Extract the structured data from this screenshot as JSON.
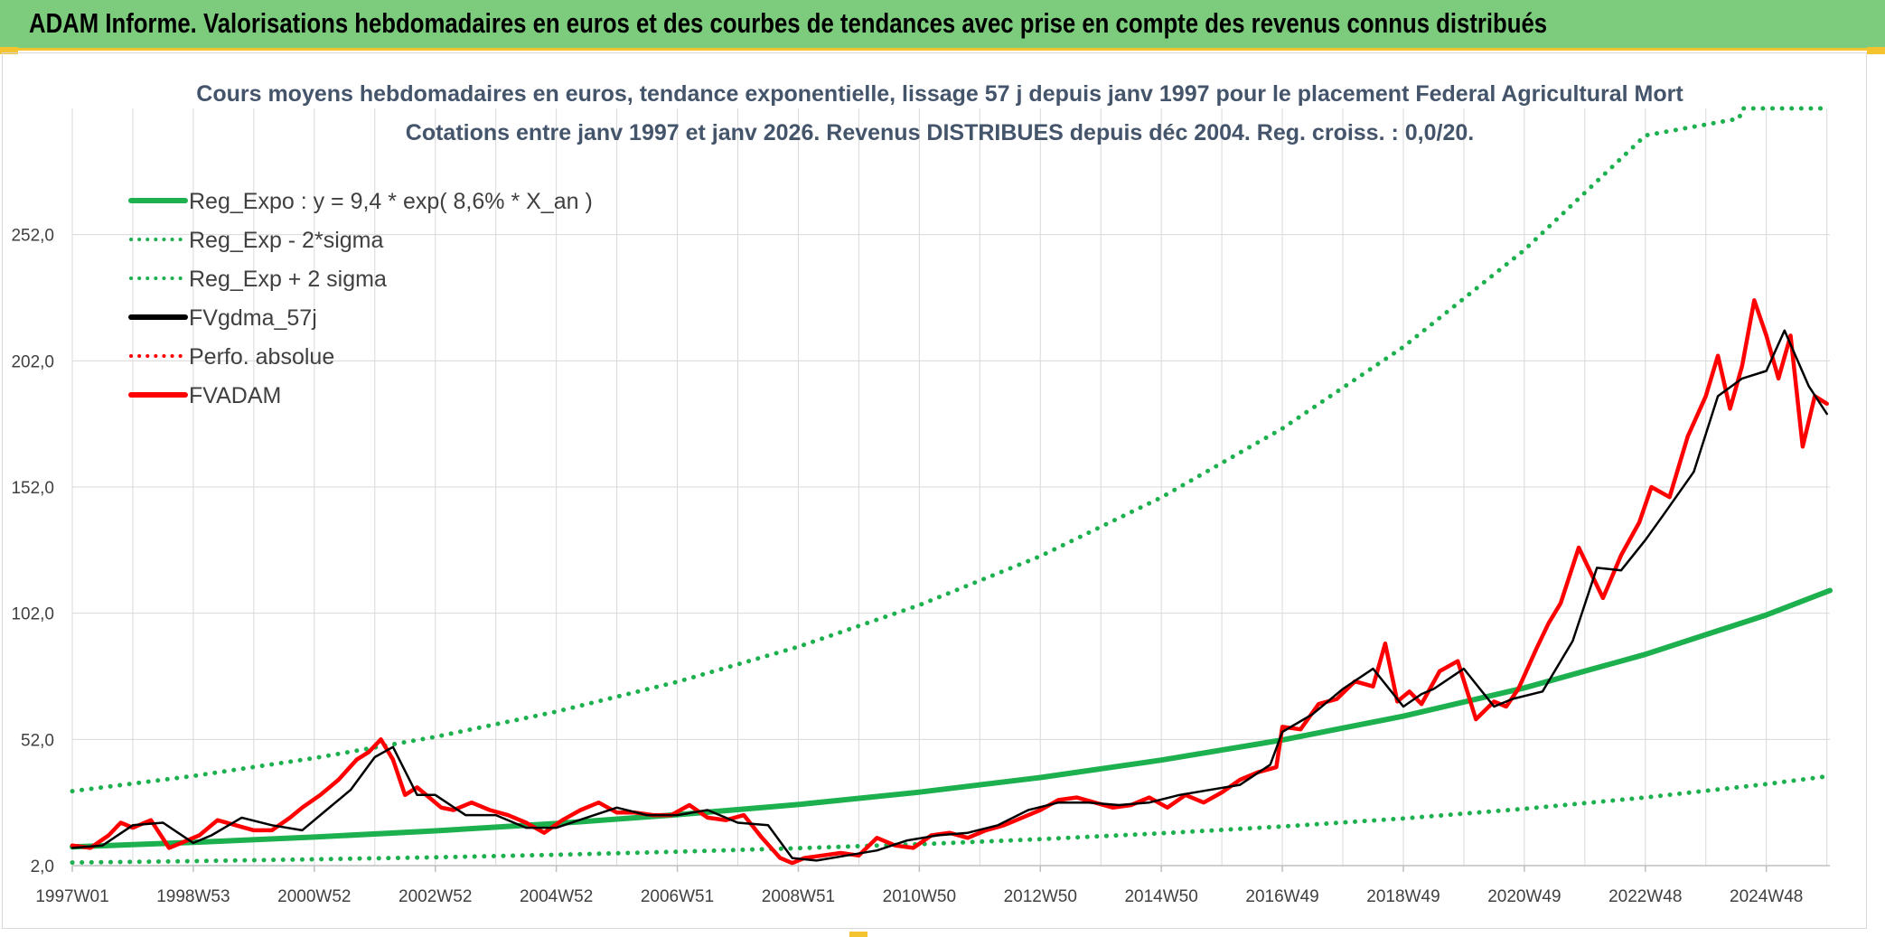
{
  "banner": {
    "title": "ADAM Informe. Valorisations hebdomadaires en euros et des courbes de tendances avec prise en compte des revenus connus distribués"
  },
  "colors": {
    "banner_bg": "#7dcc7d",
    "accent_yellow": "#f4c430",
    "reg_green": "#1db04e",
    "fvgdma_black": "#000000",
    "fvadam_red": "#ff0000"
  },
  "chart_data": {
    "type": "line",
    "title": "Cours moyens hebdomadaires en euros, tendance exponentielle, lissage 57 j depuis janv 1997 pour le placement Federal Agricultural Mort",
    "subtitle": "Cotations entre janv 1997 et janv 2026. Revenus DISTRIBUES depuis déc 2004. Reg. croiss. : 0,0/20.",
    "xlabel": "",
    "ylabel": "",
    "xlim": [
      1997.0,
      2026.05
    ],
    "ylim": [
      2,
      302
    ],
    "grid": true,
    "legend_position": "top-left",
    "x_ticks": [
      {
        "label": "1997W01",
        "x": 1997.0
      },
      {
        "label": "1998W53",
        "x": 1999.0
      },
      {
        "label": "2000W52",
        "x": 2001.0
      },
      {
        "label": "2002W52",
        "x": 2003.0
      },
      {
        "label": "2004W52",
        "x": 2005.0
      },
      {
        "label": "2006W51",
        "x": 2007.0
      },
      {
        "label": "2008W51",
        "x": 2009.0
      },
      {
        "label": "2010W50",
        "x": 2011.0
      },
      {
        "label": "2012W50",
        "x": 2013.0
      },
      {
        "label": "2014W50",
        "x": 2015.0
      },
      {
        "label": "2016W49",
        "x": 2017.0
      },
      {
        "label": "2018W49",
        "x": 2019.0
      },
      {
        "label": "2020W49",
        "x": 2021.0
      },
      {
        "label": "2022W48",
        "x": 2023.0
      },
      {
        "label": "2024W48",
        "x": 2025.0
      }
    ],
    "y_ticks": [
      {
        "label": "2,0",
        "value": 2
      },
      {
        "label": "52,0",
        "value": 52
      },
      {
        "label": "102,0",
        "value": 102
      },
      {
        "label": "152,0",
        "value": 152
      },
      {
        "label": "202,0",
        "value": 202
      },
      {
        "label": "252,0",
        "value": 252
      }
    ],
    "series": [
      {
        "name": "Reg_Expo : y = 9,4 * exp( 8,6% *  X_an )",
        "style": "solid",
        "color": "#1db04e",
        "x": [
          1997.0,
          1999.0,
          2001.0,
          2003.0,
          2005.0,
          2007.0,
          2009.0,
          2011.0,
          2013.0,
          2015.0,
          2017.0,
          2019.0,
          2021.0,
          2023.0,
          2025.0,
          2026.05
        ],
        "y": [
          9.4,
          11.2,
          13.3,
          15.8,
          18.7,
          22.2,
          26.2,
          31.1,
          36.9,
          43.8,
          51.8,
          61.2,
          72.4,
          85.7,
          101.3,
          111.0
        ]
      },
      {
        "name": "Reg_Exp - 2*sigma",
        "style": "dotted",
        "color": "#1db04e",
        "x": [
          1997.0,
          1999.0,
          2001.0,
          2003.0,
          2005.0,
          2007.0,
          2009.0,
          2011.0,
          2013.0,
          2015.0,
          2017.0,
          2019.0,
          2021.0,
          2023.0,
          2025.0,
          2026.05
        ],
        "y": [
          3.2,
          3.8,
          4.5,
          5.3,
          6.3,
          7.5,
          8.9,
          10.5,
          12.5,
          14.8,
          17.5,
          20.7,
          24.5,
          29.0,
          34.3,
          37.5
        ]
      },
      {
        "name": "Reg_Exp + 2 sigma",
        "style": "dotted",
        "color": "#1db04e",
        "x": [
          1997.0,
          1999.0,
          2001.0,
          2003.0,
          2005.0,
          2007.0,
          2009.0,
          2011.0,
          2013.0,
          2015.0,
          2017.0,
          2019.0,
          2021.0,
          2023.0,
          2024.55,
          2024.6,
          2026.05
        ],
        "y": [
          31.5,
          37.5,
          44.6,
          53.0,
          63.0,
          74.8,
          88.7,
          105.2,
          124.6,
          147.9,
          175.2,
          207.5,
          245.9,
          291.3,
          298.0,
          302.0,
          302.0
        ]
      },
      {
        "name": "FVgdma_57j",
        "style": "solid",
        "color": "#000000",
        "x": [
          1997.0,
          1997.5,
          1998.0,
          1998.5,
          1999.0,
          1999.3,
          1999.8,
          2000.3,
          2000.8,
          2001.2,
          2001.6,
          2002.0,
          2002.3,
          2002.7,
          2003.0,
          2003.5,
          2004.0,
          2004.5,
          2005.0,
          2005.5,
          2006.0,
          2006.5,
          2007.0,
          2007.5,
          2008.0,
          2008.5,
          2008.9,
          2009.3,
          2009.8,
          2010.3,
          2010.8,
          2011.3,
          2011.8,
          2012.3,
          2012.8,
          2013.3,
          2013.8,
          2014.3,
          2014.8,
          2015.3,
          2015.8,
          2016.3,
          2016.8,
          2017.0,
          2017.5,
          2018.0,
          2018.5,
          2019.0,
          2019.3,
          2019.5,
          2020.0,
          2020.5,
          2020.8,
          2021.3,
          2021.8,
          2022.2,
          2022.6,
          2023.0,
          2023.3,
          2023.8,
          2024.2,
          2024.6,
          2025.0,
          2025.3,
          2025.7,
          2026.0
        ],
        "y": [
          9,
          10,
          18,
          19,
          11,
          14,
          21,
          18,
          16,
          24,
          32,
          45,
          49,
          30,
          30,
          22,
          22,
          17,
          17,
          21,
          25,
          22,
          22,
          24,
          19,
          18,
          5,
          4,
          6,
          8,
          12,
          14,
          15,
          18,
          24,
          27,
          27,
          26,
          27,
          30,
          32,
          34,
          42,
          55,
          62,
          72,
          80,
          65,
          70,
          72,
          80,
          65,
          68,
          71,
          91,
          120,
          119,
          131,
          141,
          158,
          188,
          195,
          198,
          214,
          192,
          181
        ]
      },
      {
        "name": "Perfo. absolue",
        "style": "dotted",
        "color": "#ff0000",
        "x": [],
        "y": []
      },
      {
        "name": "FVADAM",
        "style": "solid",
        "color": "#ff0000",
        "x": [
          1997.0,
          1997.3,
          1997.6,
          1997.8,
          1998.0,
          1998.3,
          1998.6,
          1998.8,
          1999.1,
          1999.4,
          1999.7,
          2000.0,
          2000.3,
          2000.6,
          2000.8,
          2001.1,
          2001.4,
          2001.7,
          2001.9,
          2002.1,
          2002.3,
          2002.5,
          2002.7,
          2002.9,
          2003.1,
          2003.3,
          2003.6,
          2003.9,
          2004.2,
          2004.5,
          2004.8,
          2005.1,
          2005.4,
          2005.7,
          2006.0,
          2006.3,
          2006.6,
          2006.9,
          2007.2,
          2007.5,
          2007.8,
          2008.1,
          2008.4,
          2008.7,
          2008.9,
          2009.1,
          2009.4,
          2009.7,
          2010.0,
          2010.3,
          2010.6,
          2010.9,
          2011.2,
          2011.5,
          2011.8,
          2012.1,
          2012.4,
          2012.7,
          2013.0,
          2013.3,
          2013.6,
          2013.9,
          2014.2,
          2014.5,
          2014.8,
          2015.1,
          2015.4,
          2015.7,
          2016.0,
          2016.3,
          2016.6,
          2016.9,
          2017.0,
          2017.3,
          2017.6,
          2017.9,
          2018.2,
          2018.5,
          2018.7,
          2018.9,
          2019.1,
          2019.3,
          2019.6,
          2019.9,
          2020.2,
          2020.5,
          2020.7,
          2020.9,
          2021.2,
          2021.4,
          2021.6,
          2021.9,
          2022.1,
          2022.3,
          2022.6,
          2022.9,
          2023.1,
          2023.4,
          2023.7,
          2024.0,
          2024.2,
          2024.4,
          2024.6,
          2024.8,
          2025.0,
          2025.2,
          2025.4,
          2025.6,
          2025.8,
          2026.0
        ],
        "y": [
          10,
          9,
          14,
          19,
          17,
          20,
          9,
          11,
          14,
          20,
          18,
          16,
          16,
          21,
          25,
          30,
          36,
          44,
          47,
          52,
          44,
          30,
          33,
          29,
          25,
          24,
          27,
          24,
          22,
          19,
          15,
          20,
          24,
          27,
          23,
          23,
          22,
          22,
          26,
          21,
          20,
          22,
          13,
          5,
          3,
          5,
          6,
          7,
          6,
          13,
          10,
          9,
          14,
          15,
          13,
          16,
          18,
          21,
          24,
          28,
          29,
          27,
          25,
          26,
          29,
          25,
          30,
          27,
          31,
          36,
          39,
          41,
          57,
          56,
          66,
          68,
          75,
          73,
          90,
          67,
          71,
          66,
          79,
          83,
          60,
          67,
          65,
          72,
          88,
          98,
          106,
          128,
          118,
          108,
          125,
          138,
          152,
          148,
          172,
          188,
          204,
          183,
          200,
          226,
          212,
          195,
          212,
          168,
          188,
          185
        ]
      }
    ]
  }
}
